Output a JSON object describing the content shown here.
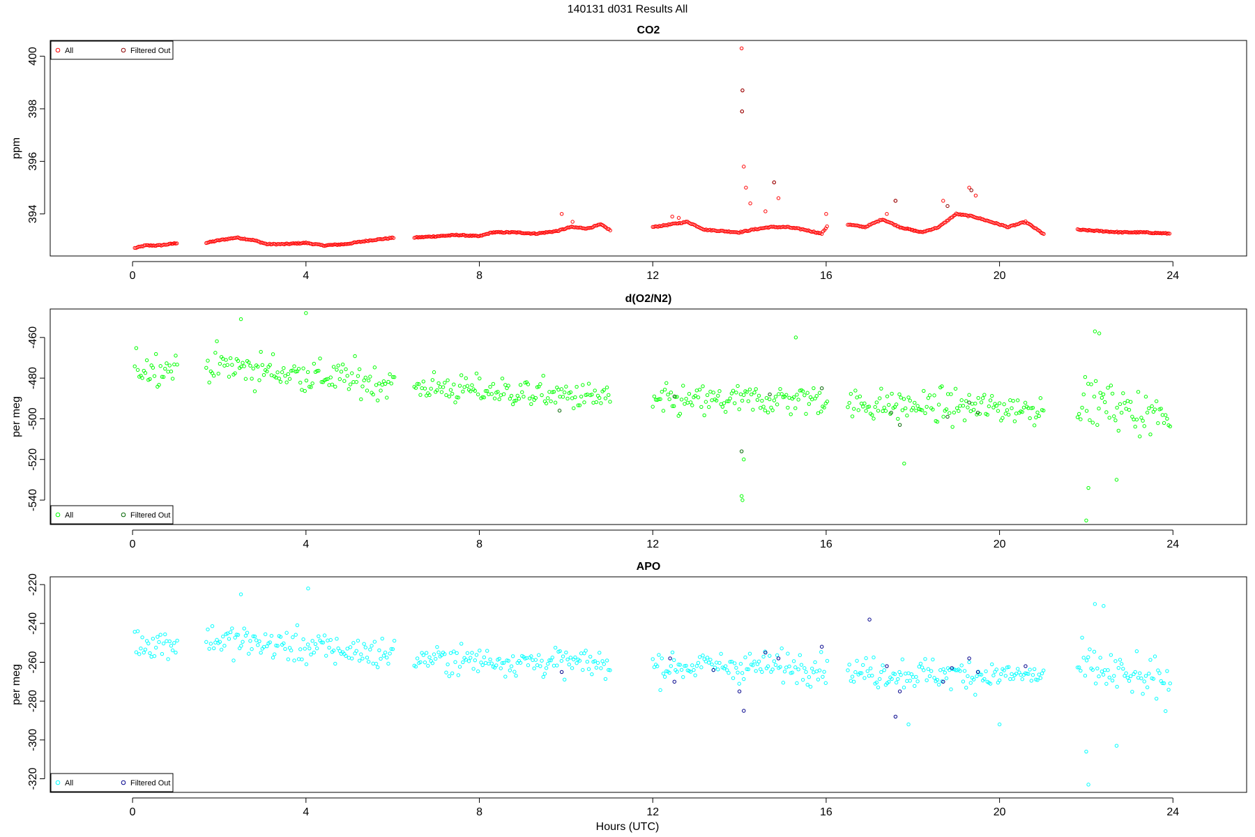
{
  "figure": {
    "title": "140131   d031   Results All",
    "xlabel": "Hours (UTC)"
  },
  "chart_data": [
    {
      "type": "scatter",
      "title": "CO2",
      "xlabel": "",
      "ylabel": "ppm",
      "xlim": [
        -1.9,
        25.7
      ],
      "ylim": [
        392.4,
        400.6
      ],
      "xticks": [
        0,
        4,
        8,
        12,
        16,
        20,
        24
      ],
      "yticks": [
        394,
        396,
        398,
        400
      ],
      "legend": {
        "placement": "top-left",
        "entries": [
          "All",
          "Filtered Out"
        ]
      },
      "series": [
        {
          "name": "All",
          "color": "#ff0000",
          "style": "open-circle",
          "segments": [
            {
              "x": [
                0.05,
                0.3,
                0.6,
                0.85,
                1.05
              ],
              "y": [
                392.7,
                392.8,
                392.8,
                392.85,
                392.9
              ]
            },
            {
              "x": [
                1.7,
                2.0,
                2.4,
                2.8,
                3.1,
                3.5,
                4.0,
                4.4,
                4.9,
                5.5,
                6.05
              ],
              "y": [
                392.9,
                393.0,
                393.1,
                393.0,
                392.85,
                392.85,
                392.9,
                392.8,
                392.85,
                393.0,
                393.1
              ]
            },
            {
              "x": [
                6.5,
                7.0,
                7.5,
                8.0,
                8.3,
                8.8,
                9.3,
                9.8,
                10.1,
                10.5,
                10.8,
                11.05
              ],
              "y": [
                393.1,
                393.15,
                393.2,
                393.15,
                393.3,
                393.3,
                393.25,
                393.35,
                393.5,
                393.45,
                393.6,
                393.35
              ]
            },
            {
              "x": [
                12.0,
                12.4,
                12.8,
                13.2,
                13.6,
                14.0,
                14.3,
                14.7,
                15.1,
                15.5,
                15.9,
                16.05
              ],
              "y": [
                393.5,
                393.6,
                393.7,
                393.4,
                393.35,
                393.3,
                393.4,
                393.5,
                393.5,
                393.4,
                393.25,
                393.6
              ]
            },
            {
              "x": [
                16.5,
                16.9,
                17.3,
                17.7,
                18.2,
                18.6,
                19.0,
                19.4,
                19.8,
                20.2,
                20.6,
                21.05
              ],
              "y": [
                393.6,
                393.5,
                393.8,
                393.5,
                393.3,
                393.5,
                394.0,
                393.9,
                393.7,
                393.5,
                393.7,
                393.2
              ]
            },
            {
              "x": [
                21.8,
                22.3,
                22.8,
                23.3,
                23.95
              ],
              "y": [
                393.4,
                393.35,
                393.3,
                393.3,
                393.25
              ]
            }
          ],
          "points": [
            {
              "x": 9.9,
              "y": 394.0
            },
            {
              "x": 10.15,
              "y": 393.7
            },
            {
              "x": 12.45,
              "y": 393.9
            },
            {
              "x": 12.6,
              "y": 393.85
            },
            {
              "x": 14.05,
              "y": 400.3
            },
            {
              "x": 14.07,
              "y": 398.7
            },
            {
              "x": 14.06,
              "y": 397.9
            },
            {
              "x": 14.1,
              "y": 395.8
            },
            {
              "x": 14.15,
              "y": 395.0
            },
            {
              "x": 14.25,
              "y": 394.4
            },
            {
              "x": 14.6,
              "y": 394.1
            },
            {
              "x": 14.8,
              "y": 395.2
            },
            {
              "x": 14.9,
              "y": 394.6
            },
            {
              "x": 16.0,
              "y": 394.0
            },
            {
              "x": 17.6,
              "y": 394.5
            },
            {
              "x": 17.4,
              "y": 394.0
            },
            {
              "x": 18.7,
              "y": 394.5
            },
            {
              "x": 19.3,
              "y": 395.0
            },
            {
              "x": 19.45,
              "y": 394.7
            }
          ]
        },
        {
          "name": "Filtered Out",
          "color": "#8b0000",
          "style": "open-circle",
          "points": [
            {
              "x": 14.07,
              "y": 398.7
            },
            {
              "x": 14.06,
              "y": 397.9
            },
            {
              "x": 14.8,
              "y": 395.2
            },
            {
              "x": 17.6,
              "y": 394.5
            },
            {
              "x": 18.8,
              "y": 394.3
            },
            {
              "x": 19.35,
              "y": 394.9
            }
          ]
        }
      ]
    },
    {
      "type": "scatter",
      "title": "d(O2/N2)",
      "xlabel": "",
      "ylabel": "per meg",
      "xlim": [
        -1.9,
        25.7
      ],
      "ylim": [
        -552,
        -446
      ],
      "xticks": [
        0,
        4,
        8,
        12,
        16,
        20,
        24
      ],
      "yticks": [
        -540,
        -520,
        -500,
        -480,
        -460
      ],
      "legend": {
        "placement": "bottom-left",
        "entries": [
          "All",
          "Filtered Out"
        ]
      },
      "series": [
        {
          "name": "All",
          "color": "#00ff00",
          "style": "open-circle",
          "segments": [
            {
              "x0": 0.05,
              "x1": 1.05,
              "mean_start": -475,
              "mean_end": -475,
              "spread": 11
            },
            {
              "x0": 1.7,
              "x1": 6.05,
              "mean_start": -473,
              "mean_end": -483,
              "spread": 12
            },
            {
              "x0": 6.5,
              "x1": 11.05,
              "mean_start": -484,
              "mean_end": -490,
              "spread": 10
            },
            {
              "x0": 12.0,
              "x1": 16.05,
              "mean_start": -492,
              "mean_end": -490,
              "spread": 11
            },
            {
              "x0": 16.5,
              "x1": 21.05,
              "mean_start": -493,
              "mean_end": -495,
              "spread": 11
            },
            {
              "x0": 21.8,
              "x1": 23.95,
              "mean_start": -490,
              "mean_end": -500,
              "spread": 15
            }
          ],
          "points": [
            {
              "x": 14.05,
              "y": -538
            },
            {
              "x": 14.07,
              "y": -540
            },
            {
              "x": 22.05,
              "y": -534
            },
            {
              "x": 22.0,
              "y": -550
            },
            {
              "x": 22.7,
              "y": -530
            },
            {
              "x": 22.2,
              "y": -457
            },
            {
              "x": 22.3,
              "y": -458
            },
            {
              "x": 4.0,
              "y": -448
            },
            {
              "x": 2.5,
              "y": -451
            },
            {
              "x": 17.8,
              "y": -522
            },
            {
              "x": 14.1,
              "y": -520
            },
            {
              "x": 15.3,
              "y": -460
            }
          ]
        },
        {
          "name": "Filtered Out",
          "color": "#006400",
          "style": "open-circle",
          "points": [
            {
              "x": 12.5,
              "y": -489
            },
            {
              "x": 14.05,
              "y": -516
            },
            {
              "x": 14.7,
              "y": -488
            },
            {
              "x": 15.9,
              "y": -485
            },
            {
              "x": 17.5,
              "y": -497
            },
            {
              "x": 17.7,
              "y": -503
            },
            {
              "x": 18.8,
              "y": -499
            },
            {
              "x": 19.3,
              "y": -492
            },
            {
              "x": 19.5,
              "y": -497
            },
            {
              "x": 9.85,
              "y": -496
            }
          ]
        }
      ]
    },
    {
      "type": "scatter",
      "title": "APO",
      "xlabel": "Hours (UTC)",
      "ylabel": "per meg",
      "xlim": [
        -1.9,
        25.7
      ],
      "ylim": [
        -327,
        -216
      ],
      "xticks": [
        0,
        4,
        8,
        12,
        16,
        20,
        24
      ],
      "yticks": [
        -320,
        -300,
        -280,
        -260,
        -240,
        -220
      ],
      "legend": {
        "placement": "bottom-left",
        "entries": [
          "All",
          "Filtered Out"
        ]
      },
      "series": [
        {
          "name": "All",
          "color": "#00ffff",
          "style": "open-circle",
          "segments": [
            {
              "x0": 0.05,
              "x1": 1.05,
              "mean_start": -250,
              "mean_end": -250,
              "spread": 11
            },
            {
              "x0": 1.7,
              "x1": 6.05,
              "mean_start": -248,
              "mean_end": -256,
              "spread": 12
            },
            {
              "x0": 6.5,
              "x1": 11.05,
              "mean_start": -258,
              "mean_end": -261,
              "spread": 10
            },
            {
              "x0": 12.0,
              "x1": 16.05,
              "mean_start": -262,
              "mean_end": -262,
              "spread": 11
            },
            {
              "x0": 16.5,
              "x1": 21.05,
              "mean_start": -265,
              "mean_end": -267,
              "spread": 11
            },
            {
              "x0": 21.8,
              "x1": 23.95,
              "mean_start": -262,
              "mean_end": -272,
              "spread": 15
            }
          ],
          "points": [
            {
              "x": 22.0,
              "y": -306
            },
            {
              "x": 22.05,
              "y": -323
            },
            {
              "x": 22.7,
              "y": -303
            },
            {
              "x": 22.2,
              "y": -230
            },
            {
              "x": 22.4,
              "y": -231
            },
            {
              "x": 4.05,
              "y": -222
            },
            {
              "x": 2.5,
              "y": -225
            },
            {
              "x": 17.9,
              "y": -292
            },
            {
              "x": 20.0,
              "y": -292
            }
          ]
        },
        {
          "name": "Filtered Out",
          "color": "#00008b",
          "style": "open-circle",
          "points": [
            {
              "x": 12.4,
              "y": -258
            },
            {
              "x": 12.5,
              "y": -270
            },
            {
              "x": 13.4,
              "y": -264
            },
            {
              "x": 14.0,
              "y": -275
            },
            {
              "x": 14.1,
              "y": -285
            },
            {
              "x": 14.6,
              "y": -255
            },
            {
              "x": 14.9,
              "y": -258
            },
            {
              "x": 15.9,
              "y": -252
            },
            {
              "x": 17.0,
              "y": -238
            },
            {
              "x": 17.4,
              "y": -262
            },
            {
              "x": 17.6,
              "y": -288
            },
            {
              "x": 17.7,
              "y": -275
            },
            {
              "x": 18.7,
              "y": -270
            },
            {
              "x": 18.9,
              "y": -263
            },
            {
              "x": 19.3,
              "y": -258
            },
            {
              "x": 19.5,
              "y": -265
            },
            {
              "x": 20.6,
              "y": -262
            },
            {
              "x": 9.9,
              "y": -265
            }
          ]
        }
      ]
    }
  ]
}
